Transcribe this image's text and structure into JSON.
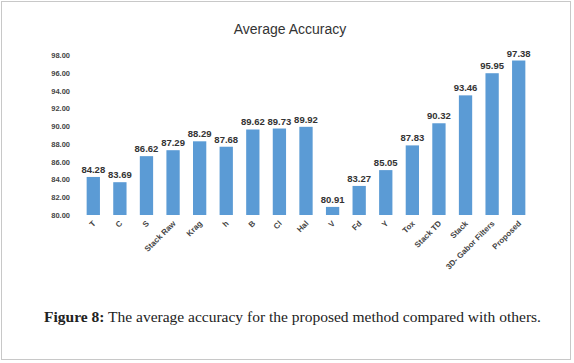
{
  "chart_data": {
    "type": "bar",
    "title": "Average Accuracy",
    "categories": [
      "T",
      "C",
      "S",
      "Stack Raw",
      "Krag",
      "h",
      "B",
      "Cl",
      "Hal",
      "V",
      "Fd",
      "Y",
      "Tox",
      "Stack TD",
      "Stack",
      "3D- Gabor Filters",
      "Proposed"
    ],
    "values": [
      84.28,
      83.69,
      86.62,
      87.29,
      88.29,
      87.68,
      89.62,
      89.73,
      89.92,
      80.91,
      83.27,
      85.05,
      87.83,
      90.32,
      93.46,
      95.95,
      97.38
    ],
    "color": "#5b9bd5",
    "ylim": [
      80,
      98
    ],
    "yticks": [
      {
        "value": 80,
        "label": "80.00"
      },
      {
        "value": 82,
        "label": "82.00"
      },
      {
        "value": 84,
        "label": "84.00"
      },
      {
        "value": 86,
        "label": "86.00"
      },
      {
        "value": 88,
        "label": "88.00"
      },
      {
        "value": 90,
        "label": "90.00"
      },
      {
        "value": 92,
        "label": "92.00"
      },
      {
        "value": 94,
        "label": "94.00"
      },
      {
        "value": 96,
        "label": "96.00"
      },
      {
        "value": 98,
        "label": "98.00"
      }
    ],
    "grid": false,
    "data_labels": true
  },
  "caption": {
    "label": "Figure 8:",
    "text": "The average accuracy for the proposed method compared with others."
  }
}
